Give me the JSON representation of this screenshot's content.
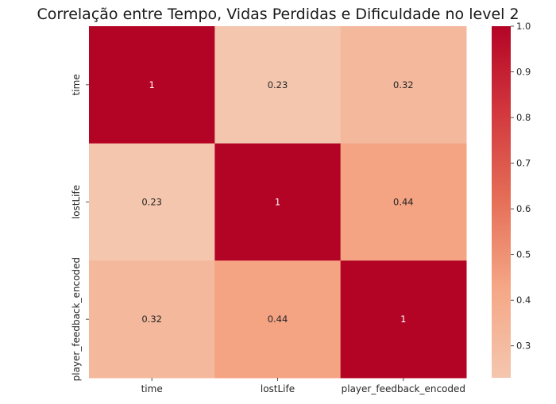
{
  "chart_data": {
    "type": "heatmap",
    "title": "Correlação entre Tempo, Vidas Perdidas e Dificuldade no level 2",
    "xlabel": "",
    "ylabel": "",
    "x_categories": [
      "time",
      "lostLife",
      "player_feedback_encoded"
    ],
    "y_categories": [
      "time",
      "lostLife",
      "player_feedback_encoded"
    ],
    "matrix": [
      [
        1,
        0.23,
        0.32
      ],
      [
        0.23,
        1,
        0.44
      ],
      [
        0.32,
        0.44,
        1
      ]
    ],
    "cell_labels": [
      [
        "1",
        "0.23",
        "0.32"
      ],
      [
        "0.23",
        "1",
        "0.44"
      ],
      [
        "0.32",
        "0.44",
        "1"
      ]
    ],
    "colorscale": {
      "name": "coolwarm (upper half)",
      "range": [
        0.23,
        1.0
      ],
      "stops": [
        "#f4c6ae",
        "#f5a887",
        "#e57058",
        "#d2393e",
        "#b40426"
      ],
      "ticks": [
        0.3,
        0.4,
        0.5,
        0.6,
        0.7,
        0.8,
        0.9,
        1.0
      ],
      "tick_labels": [
        "0.3",
        "0.4",
        "0.5",
        "0.6",
        "0.7",
        "0.8",
        "0.9",
        "1.0"
      ]
    }
  }
}
